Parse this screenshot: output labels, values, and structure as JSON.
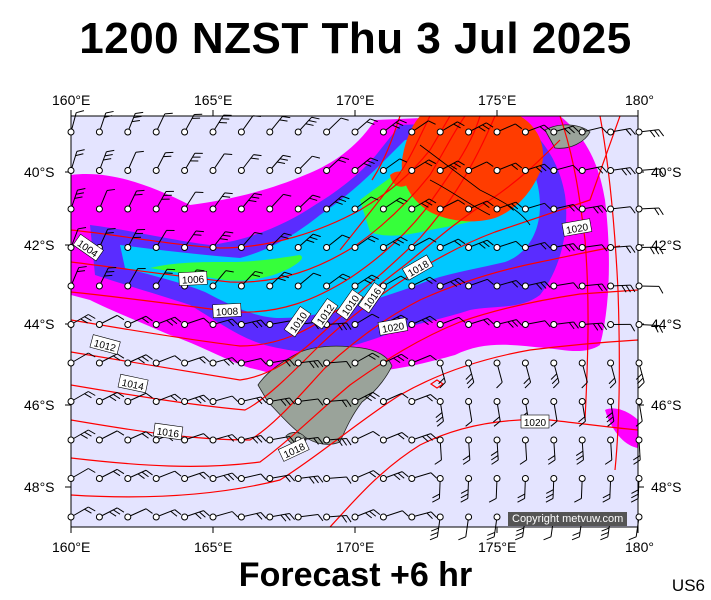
{
  "header": {
    "title": "1200 NZST Thu 3 Jul 2025"
  },
  "footer": {
    "forecast": "Forecast +6 hr",
    "code": "US6"
  },
  "copyright": "Copyright metvuw.com",
  "axes": {
    "top_lon": [
      "160°E",
      "165°E",
      "170°E",
      "175°E",
      "180°"
    ],
    "bottom_lon": [
      "160°E",
      "165°E",
      "170°E",
      "175°E",
      "180°"
    ],
    "left_lat": [
      "40°S",
      "42°S",
      "44°S",
      "46°S",
      "48°S"
    ],
    "right_lat": [
      "40°S",
      "42°S",
      "44°S",
      "46°S",
      "48°S"
    ]
  },
  "isobar_labels": [
    "1004",
    "1006",
    "1008",
    "1010",
    "1012",
    "1012",
    "1014",
    "1016",
    "1016",
    "1018",
    "1018",
    "1020",
    "1020",
    "1020",
    "1010"
  ],
  "colors": {
    "background": "#e4e4ff",
    "isobar": "#ff0000",
    "rain_light": "#ff00ff",
    "rain_moderate": "#5a2cff",
    "rain_heavy": "#00c8ff",
    "rain_very_heavy": "#36ff3a",
    "rain_extreme": "#ff3c00",
    "land": "#9aa39a"
  }
}
